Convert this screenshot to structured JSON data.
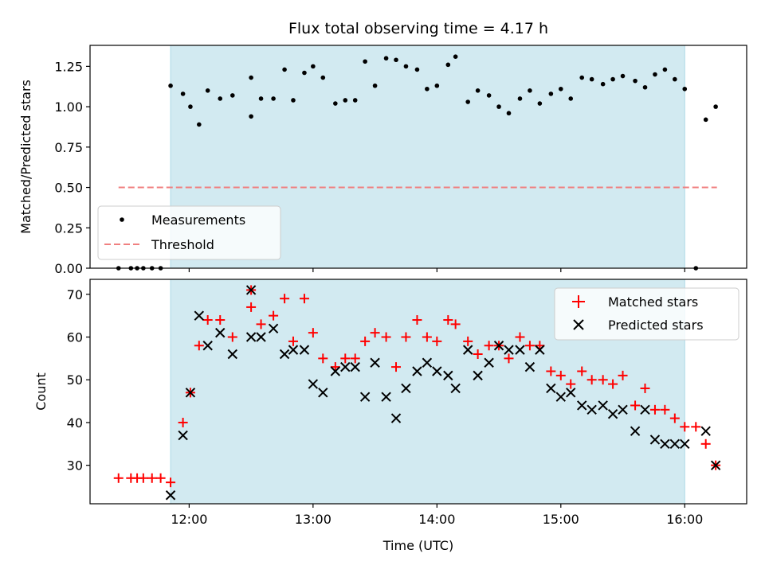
{
  "chart_data": {
    "title": "Flux total observing time = 4.17 h",
    "xlabel": "Time (UTC)",
    "x_ticks": [
      "12:00",
      "13:00",
      "14:00",
      "15:00",
      "16:00"
    ],
    "x_tick_hours": [
      12,
      13,
      14,
      15,
      16
    ],
    "xlim_hours": [
      11.2,
      16.5
    ],
    "observing_window_hours": [
      11.85,
      16.0
    ],
    "colors": {
      "shade": "#add8e6",
      "measurement": "#000000",
      "threshold": "#f08080",
      "matched": "#ff0000",
      "predicted": "#000000"
    },
    "top": {
      "type": "scatter",
      "ylabel": "Matched/Predicted stars",
      "ylim": [
        0,
        1.38
      ],
      "y_ticks": [
        "0.00",
        "0.25",
        "0.50",
        "0.75",
        "1.00",
        "1.25"
      ],
      "y_tick_values": [
        0,
        0.25,
        0.5,
        0.75,
        1.0,
        1.25
      ],
      "legend_position": "lower-left",
      "legend": [
        "Measurements",
        "Threshold"
      ],
      "threshold": {
        "value": 0.5,
        "x_range_hours": [
          11.43,
          16.26
        ]
      },
      "measurements": [
        [
          11.43,
          0.0
        ],
        [
          11.53,
          0.0
        ],
        [
          11.58,
          0.0
        ],
        [
          11.63,
          0.0
        ],
        [
          11.7,
          0.0
        ],
        [
          11.77,
          0.0
        ],
        [
          11.85,
          1.13
        ],
        [
          11.95,
          1.08
        ],
        [
          12.01,
          1.0
        ],
        [
          12.08,
          0.89
        ],
        [
          12.15,
          1.1
        ],
        [
          12.25,
          1.05
        ],
        [
          12.35,
          1.07
        ],
        [
          12.5,
          0.94
        ],
        [
          12.5,
          1.18
        ],
        [
          12.58,
          1.05
        ],
        [
          12.68,
          1.05
        ],
        [
          12.77,
          1.23
        ],
        [
          12.84,
          1.04
        ],
        [
          12.93,
          1.21
        ],
        [
          13.0,
          1.25
        ],
        [
          13.08,
          1.18
        ],
        [
          13.18,
          1.02
        ],
        [
          13.26,
          1.04
        ],
        [
          13.34,
          1.04
        ],
        [
          13.42,
          1.28
        ],
        [
          13.5,
          1.13
        ],
        [
          13.59,
          1.3
        ],
        [
          13.67,
          1.29
        ],
        [
          13.75,
          1.25
        ],
        [
          13.84,
          1.23
        ],
        [
          13.92,
          1.11
        ],
        [
          14.0,
          1.13
        ],
        [
          14.09,
          1.26
        ],
        [
          14.15,
          1.31
        ],
        [
          14.25,
          1.03
        ],
        [
          14.33,
          1.1
        ],
        [
          14.42,
          1.07
        ],
        [
          14.5,
          1.0
        ],
        [
          14.58,
          0.96
        ],
        [
          14.67,
          1.05
        ],
        [
          14.75,
          1.1
        ],
        [
          14.83,
          1.02
        ],
        [
          14.92,
          1.08
        ],
        [
          15.0,
          1.11
        ],
        [
          15.08,
          1.05
        ],
        [
          15.17,
          1.18
        ],
        [
          15.25,
          1.17
        ],
        [
          15.34,
          1.14
        ],
        [
          15.42,
          1.17
        ],
        [
          15.5,
          1.19
        ],
        [
          15.6,
          1.16
        ],
        [
          15.68,
          1.12
        ],
        [
          15.76,
          1.2
        ],
        [
          15.84,
          1.23
        ],
        [
          15.92,
          1.17
        ],
        [
          16.0,
          1.11
        ],
        [
          16.09,
          0.0
        ],
        [
          16.17,
          0.92
        ],
        [
          16.25,
          1.0
        ]
      ]
    },
    "bottom": {
      "type": "scatter",
      "ylabel": "Count",
      "ylim": [
        21,
        73.5
      ],
      "y_ticks": [
        "30",
        "40",
        "50",
        "60",
        "70"
      ],
      "y_tick_values": [
        30,
        40,
        50,
        60,
        70
      ],
      "legend_position": "upper-right",
      "series": [
        {
          "name": "Matched stars",
          "marker": "plus",
          "points": [
            [
              11.43,
              27
            ],
            [
              11.53,
              27
            ],
            [
              11.58,
              27
            ],
            [
              11.63,
              27
            ],
            [
              11.7,
              27
            ],
            [
              11.77,
              27
            ],
            [
              11.85,
              26
            ],
            [
              11.95,
              40
            ],
            [
              12.01,
              47
            ],
            [
              12.08,
              58
            ],
            [
              12.15,
              64
            ],
            [
              12.25,
              64
            ],
            [
              12.35,
              60
            ],
            [
              12.5,
              71
            ],
            [
              12.5,
              67
            ],
            [
              12.58,
              63
            ],
            [
              12.68,
              65
            ],
            [
              12.77,
              69
            ],
            [
              12.84,
              59
            ],
            [
              12.93,
              69
            ],
            [
              13.0,
              61
            ],
            [
              13.08,
              55
            ],
            [
              13.18,
              53
            ],
            [
              13.26,
              55
            ],
            [
              13.34,
              55
            ],
            [
              13.42,
              59
            ],
            [
              13.5,
              61
            ],
            [
              13.59,
              60
            ],
            [
              13.67,
              53
            ],
            [
              13.75,
              60
            ],
            [
              13.84,
              64
            ],
            [
              13.92,
              60
            ],
            [
              14.0,
              59
            ],
            [
              14.09,
              64
            ],
            [
              14.15,
              63
            ],
            [
              14.25,
              59
            ],
            [
              14.33,
              56
            ],
            [
              14.42,
              58
            ],
            [
              14.5,
              58
            ],
            [
              14.58,
              55
            ],
            [
              14.67,
              60
            ],
            [
              14.75,
              58
            ],
            [
              14.83,
              58
            ],
            [
              14.92,
              52
            ],
            [
              15.0,
              51
            ],
            [
              15.08,
              49
            ],
            [
              15.17,
              52
            ],
            [
              15.25,
              50
            ],
            [
              15.34,
              50
            ],
            [
              15.42,
              49
            ],
            [
              15.5,
              51
            ],
            [
              15.6,
              44
            ],
            [
              15.68,
              48
            ],
            [
              15.76,
              43
            ],
            [
              15.84,
              43
            ],
            [
              15.92,
              41
            ],
            [
              16.0,
              39
            ],
            [
              16.09,
              39
            ],
            [
              16.17,
              35
            ],
            [
              16.25,
              30
            ]
          ]
        },
        {
          "name": "Predicted stars",
          "marker": "x",
          "points": [
            [
              11.85,
              23
            ],
            [
              11.95,
              37
            ],
            [
              12.01,
              47
            ],
            [
              12.08,
              65
            ],
            [
              12.15,
              58
            ],
            [
              12.25,
              61
            ],
            [
              12.35,
              56
            ],
            [
              12.5,
              71
            ],
            [
              12.5,
              60
            ],
            [
              12.58,
              60
            ],
            [
              12.68,
              62
            ],
            [
              12.77,
              56
            ],
            [
              12.84,
              57
            ],
            [
              12.93,
              57
            ],
            [
              13.0,
              49
            ],
            [
              13.08,
              47
            ],
            [
              13.18,
              52
            ],
            [
              13.26,
              53
            ],
            [
              13.34,
              53
            ],
            [
              13.42,
              46
            ],
            [
              13.5,
              54
            ],
            [
              13.59,
              46
            ],
            [
              13.67,
              41
            ],
            [
              13.75,
              48
            ],
            [
              13.84,
              52
            ],
            [
              13.92,
              54
            ],
            [
              14.0,
              52
            ],
            [
              14.09,
              51
            ],
            [
              14.15,
              48
            ],
            [
              14.25,
              57
            ],
            [
              14.33,
              51
            ],
            [
              14.42,
              54
            ],
            [
              14.5,
              58
            ],
            [
              14.58,
              57
            ],
            [
              14.67,
              57
            ],
            [
              14.75,
              53
            ],
            [
              14.83,
              57
            ],
            [
              14.92,
              48
            ],
            [
              15.0,
              46
            ],
            [
              15.08,
              47
            ],
            [
              15.17,
              44
            ],
            [
              15.25,
              43
            ],
            [
              15.34,
              44
            ],
            [
              15.42,
              42
            ],
            [
              15.5,
              43
            ],
            [
              15.6,
              38
            ],
            [
              15.68,
              43
            ],
            [
              15.76,
              36
            ],
            [
              15.84,
              35
            ],
            [
              15.92,
              35
            ],
            [
              16.0,
              35
            ],
            [
              16.17,
              38
            ],
            [
              16.25,
              30
            ]
          ]
        }
      ]
    }
  }
}
